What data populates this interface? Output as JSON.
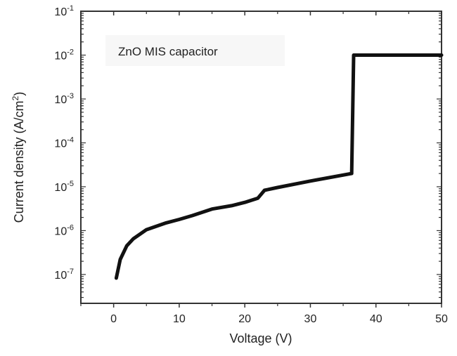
{
  "chart_data": {
    "type": "line",
    "title": "",
    "annotation": "ZnO MIS capacitor",
    "xlabel": "Voltage (V)",
    "ylabel": "Current density (A/cm²)",
    "xlim": [
      -5,
      50
    ],
    "ylim": [
      2.2e-08,
      0.1
    ],
    "yscale": "log",
    "grid": false,
    "legend": null,
    "x_ticks": [
      0,
      10,
      20,
      30,
      40,
      50
    ],
    "x_minor_ticks": [
      -5,
      5,
      15,
      25,
      35,
      45
    ],
    "y_ticks": [
      {
        "value": 0.1,
        "base": "10",
        "exp": "-1"
      },
      {
        "value": 0.01,
        "base": "10",
        "exp": "-2"
      },
      {
        "value": 0.001,
        "base": "10",
        "exp": "-3"
      },
      {
        "value": 0.0001,
        "base": "10",
        "exp": "-4"
      },
      {
        "value": 1e-05,
        "base": "10",
        "exp": "-5"
      },
      {
        "value": 1e-06,
        "base": "10",
        "exp": "-6"
      },
      {
        "value": 1e-07,
        "base": "10",
        "exp": "-7"
      }
    ],
    "series": [
      {
        "name": "ZnO MIS capacitor",
        "color": "#111111",
        "x": [
          0.4,
          1,
          2,
          3,
          5,
          8,
          10,
          12,
          15,
          18,
          20,
          22,
          23,
          25,
          30,
          36.3,
          36.6,
          50
        ],
        "y": [
          8.3e-08,
          2.2e-07,
          4.5e-07,
          6.5e-07,
          1.05e-06,
          1.5e-06,
          1.8e-06,
          2.2e-06,
          3.1e-06,
          3.7e-06,
          4.4e-06,
          5.5e-06,
          8.3e-06,
          9.6e-06,
          1.35e-05,
          2e-05,
          0.01,
          0.01
        ]
      }
    ]
  },
  "labels": {
    "annotation": "ZnO MIS capacitor",
    "xlabel": "Voltage (V)",
    "ylabel_main": "Current density (A/cm",
    "ylabel_sup": "2",
    "ylabel_end": ")"
  }
}
